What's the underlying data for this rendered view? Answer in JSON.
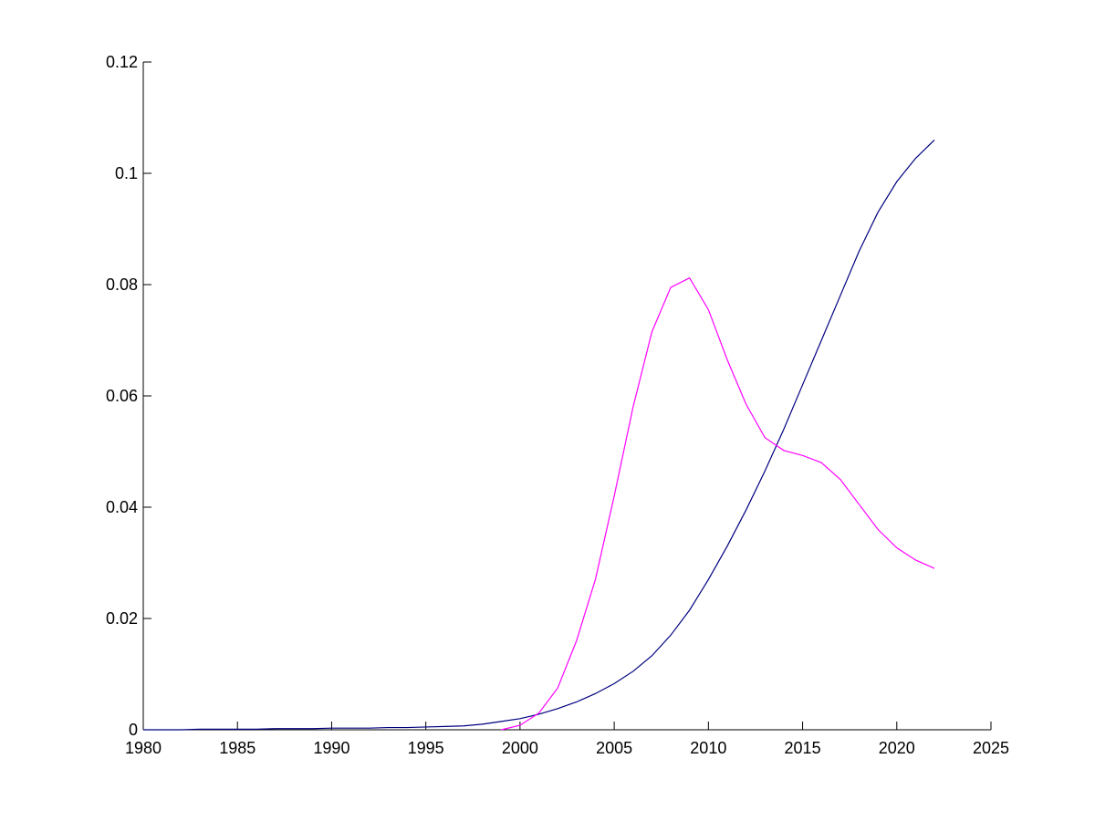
{
  "chart_data": {
    "type": "line",
    "x": [
      1980,
      1981,
      1982,
      1983,
      1984,
      1985,
      1986,
      1987,
      1988,
      1989,
      1990,
      1991,
      1992,
      1993,
      1994,
      1995,
      1996,
      1997,
      1998,
      1999,
      2000,
      2001,
      2002,
      2003,
      2004,
      2005,
      2006,
      2007,
      2008,
      2009,
      2010,
      2011,
      2012,
      2013,
      2014,
      2015,
      2016,
      2017,
      2018,
      2019,
      2020,
      2021,
      2022
    ],
    "series": [
      {
        "color": "#00007f",
        "values": [
          0,
          0,
          0,
          0.0001,
          0.0001,
          0.0001,
          0.0001,
          0.0002,
          0.0002,
          0.0002,
          0.0003,
          0.0003,
          0.0003,
          0.0004,
          0.0004,
          0.0005,
          0.0006,
          0.0007,
          0.001,
          0.0015,
          0.002,
          0.0028,
          0.0038,
          0.005,
          0.0065,
          0.0083,
          0.0105,
          0.0133,
          0.017,
          0.0215,
          0.027,
          0.033,
          0.0395,
          0.0465,
          0.054,
          0.062,
          0.07,
          0.078,
          0.086,
          0.093,
          0.0985,
          0.1027,
          0.106
        ]
      },
      {
        "color": "#ff00ff",
        "values": [
          null,
          null,
          null,
          null,
          null,
          null,
          null,
          null,
          null,
          null,
          null,
          null,
          null,
          null,
          null,
          null,
          null,
          null,
          null,
          0,
          0.0008,
          0.003,
          0.0075,
          0.016,
          0.027,
          0.042,
          0.058,
          0.0715,
          0.0795,
          0.0812,
          0.0755,
          0.0665,
          0.0585,
          0.0525,
          0.0502,
          0.0493,
          0.048,
          0.045,
          0.0405,
          0.036,
          0.0327,
          0.0305,
          0.029
        ]
      }
    ],
    "xlim": [
      1980,
      2025
    ],
    "xticks": [
      1980,
      1985,
      1990,
      1995,
      2000,
      2005,
      2010,
      2015,
      2020,
      2025
    ],
    "ylim": [
      0,
      0.12
    ],
    "yticks": [
      0,
      0.02,
      0.04,
      0.06,
      0.08,
      0.1,
      0.12
    ]
  }
}
